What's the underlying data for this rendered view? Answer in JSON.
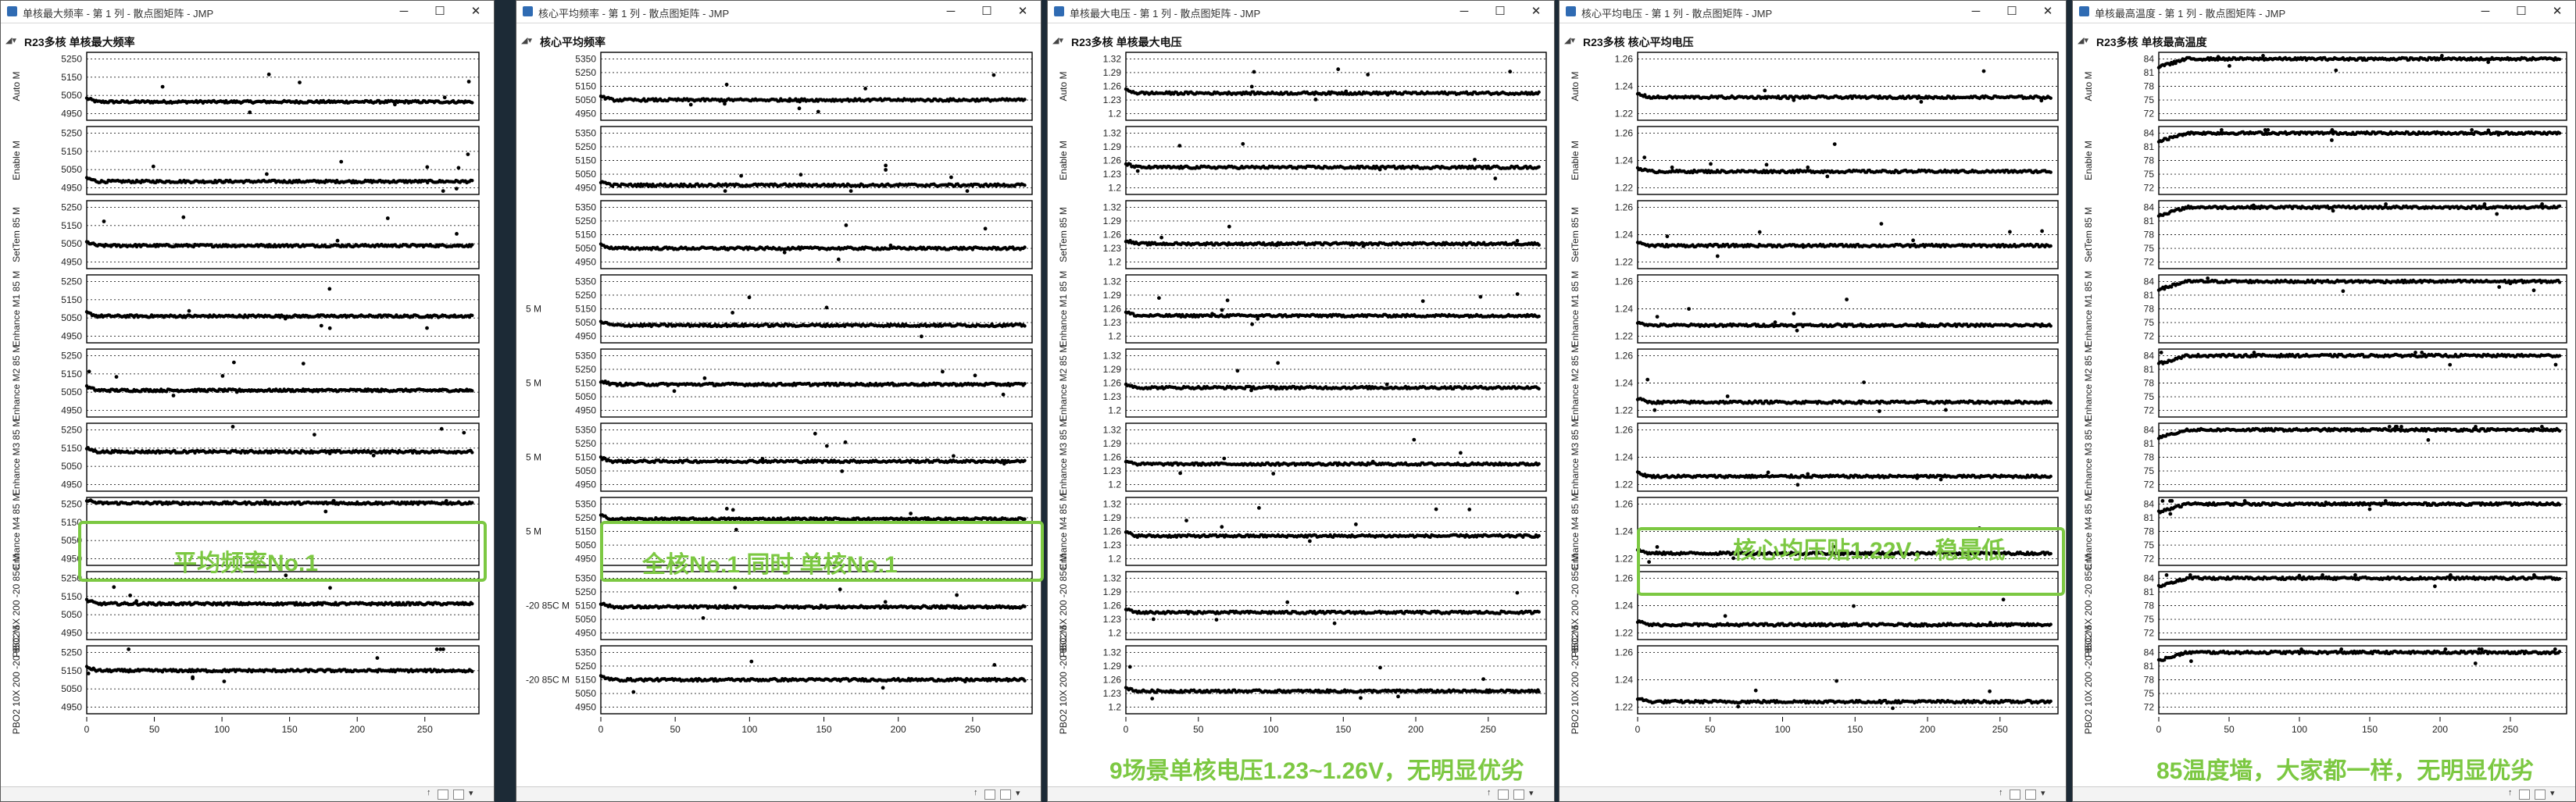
{
  "windows": [
    {
      "id": "w1",
      "window_title": "单核最大频率 - 第 1 列 - 散点图矩阵 - JMP",
      "outline_title": "R23多核 单核最大频率",
      "x_axis_title": "第 1 列",
      "annotation": "平均频率No.1"
    },
    {
      "id": "w2",
      "window_title": "核心平均频率 - 第 1 列 - 散点图矩阵 - JMP",
      "outline_title": "核心平均频率",
      "x_axis_title": "第 1 列",
      "annotation": "全核No.1 同时 单核No.1"
    },
    {
      "id": "w3",
      "window_title": "单核最大电压 - 第 1 列 - 散点图矩阵 - JMP",
      "outline_title": "R23多核 单核最大电压",
      "x_axis_title": "第 1 列",
      "annotation": "9场景单核电压1.23~1.26V，无明显优劣"
    },
    {
      "id": "w4",
      "window_title": "核心平均电压 - 第 1 列 - 散点图矩阵 - JMP",
      "outline_title": "R23多核 核心平均电压",
      "x_axis_title": "第 1 列",
      "annotation": "核心均压贴1.22V，稳最低"
    },
    {
      "id": "w5",
      "window_title": "单核最高温度 - 第 1 列 - 散点图矩阵 - JMP",
      "outline_title": "R23多核 单核最高温度",
      "x_axis_title": "第 1 列",
      "annotation": "85温度墙，大家都一样，无明显优劣"
    }
  ],
  "window_controls": [
    "─",
    "☐",
    "✕"
  ],
  "chart_data": [
    {
      "type": "scatter",
      "title": "R23多核 单核最大频率",
      "xlabel": "第 1 列",
      "x_ticks": [
        0,
        50,
        100,
        150,
        200,
        250
      ],
      "x_range": [
        0,
        290
      ],
      "grid": true,
      "y_ticks": [
        4950,
        5050,
        5150,
        5250
      ],
      "series": [
        {
          "name": "Auto M",
          "values_level": 5015
        },
        {
          "name": "Enable M",
          "values_level": 4985
        },
        {
          "name": "SetTem 85 M",
          "values_level": 5040
        },
        {
          "name": "Enhance M1 85 M",
          "values_level": 5060
        },
        {
          "name": "Enhance M2 85 M",
          "values_level": 5060
        },
        {
          "name": "Enhance M3 85 M",
          "values_level": 5130
        },
        {
          "name": "Enhance M4 85 M",
          "values_level": 5255
        },
        {
          "name": "PBO2 5X 200 -20 85C M",
          "values_level": 5110
        },
        {
          "name": "PBO2 10X 200 -20 85C M",
          "values_level": 5150
        }
      ]
    },
    {
      "type": "scatter",
      "title": "核心平均频率",
      "xlabel": "第 1 列",
      "x_ticks": [
        0,
        50,
        100,
        150,
        200,
        250
      ],
      "x_range": [
        0,
        290
      ],
      "grid": true,
      "y_ticks": [
        4950,
        5050,
        5150,
        5250,
        5350
      ],
      "series": [
        {
          "name": "",
          "values_level": 5050
        },
        {
          "name": "",
          "values_level": 4970
        },
        {
          "name": "",
          "values_level": 5050
        },
        {
          "name": "5 M",
          "values_level": 5030
        },
        {
          "name": "5 M",
          "values_level": 5140
        },
        {
          "name": "5 M",
          "values_level": 5120
        },
        {
          "name": "5 M",
          "values_level": 5240
        },
        {
          "name": "-20 85C M",
          "values_level": 5140
        },
        {
          "name": "-20 85C M",
          "values_level": 5150
        }
      ]
    },
    {
      "type": "scatter",
      "title": "R23多核 单核最大电压",
      "xlabel": "第 1 列",
      "x_ticks": [
        0,
        50,
        100,
        150,
        200,
        250
      ],
      "x_range": [
        0,
        290
      ],
      "grid": true,
      "y_ticks": [
        1.2,
        1.23,
        1.26,
        1.29,
        1.32
      ],
      "series": [
        {
          "name": "Auto M",
          "values_level": 1.245
        },
        {
          "name": "Enable M",
          "values_level": 1.245
        },
        {
          "name": "SetTem 85 M",
          "values_level": 1.24
        },
        {
          "name": "Enhance M1 85 M",
          "values_level": 1.245
        },
        {
          "name": "Enhance M2 85 M",
          "values_level": 1.25
        },
        {
          "name": "Enhance M3 85 M",
          "values_level": 1.245
        },
        {
          "name": "Enhance M4 85 M",
          "values_level": 1.25
        },
        {
          "name": "PBO2 5X 200 -20 85C M",
          "values_level": 1.245
        },
        {
          "name": "PBO2 10X 200 -20 85C M",
          "values_level": 1.235
        }
      ]
    },
    {
      "type": "scatter",
      "title": "R23多核 核心平均电压",
      "xlabel": "第 1 列",
      "x_ticks": [
        0,
        50,
        100,
        150,
        200,
        250
      ],
      "x_range": [
        0,
        290
      ],
      "grid": true,
      "y_ticks": [
        1.22,
        1.24,
        1.26
      ],
      "series": [
        {
          "name": "Auto M",
          "values_level": 1.232
        },
        {
          "name": "Enable M",
          "values_level": 1.232
        },
        {
          "name": "SetTem 85 M",
          "values_level": 1.232
        },
        {
          "name": "Enhance M1 85 M",
          "values_level": 1.228
        },
        {
          "name": "Enhance M2 85 M",
          "values_level": 1.226
        },
        {
          "name": "Enhance M3 85 M",
          "values_level": 1.226
        },
        {
          "name": "Enhance M4 85 M",
          "values_level": 1.224
        },
        {
          "name": "PBO2 5X 200 -20 85C M",
          "values_level": 1.226
        },
        {
          "name": "PBO2 10X 200 -20 85C M",
          "values_level": 1.224
        }
      ]
    },
    {
      "type": "scatter",
      "title": "R23多核 单核最高温度",
      "xlabel": "第 1 列",
      "x_ticks": [
        0,
        50,
        100,
        150,
        200,
        250
      ],
      "x_range": [
        0,
        290
      ],
      "grid": true,
      "y_ticks": [
        72,
        75,
        78,
        81,
        84
      ],
      "series": [
        {
          "name": "Auto M",
          "values_level": 84
        },
        {
          "name": "Enable M",
          "values_level": 84
        },
        {
          "name": "SetTem 85 M",
          "values_level": 84
        },
        {
          "name": "Enhance M1 85 M",
          "values_level": 84
        },
        {
          "name": "Enhance M2 85 M",
          "values_level": 84
        },
        {
          "name": "Enhance M3 85 M",
          "values_level": 84
        },
        {
          "name": "Enhance M4 85 M",
          "values_level": 84
        },
        {
          "name": "PBO2 5X 200 -20 85C M",
          "values_level": 84
        },
        {
          "name": "PBO2 10X 200 -20 85C M",
          "values_level": 84
        }
      ]
    }
  ]
}
